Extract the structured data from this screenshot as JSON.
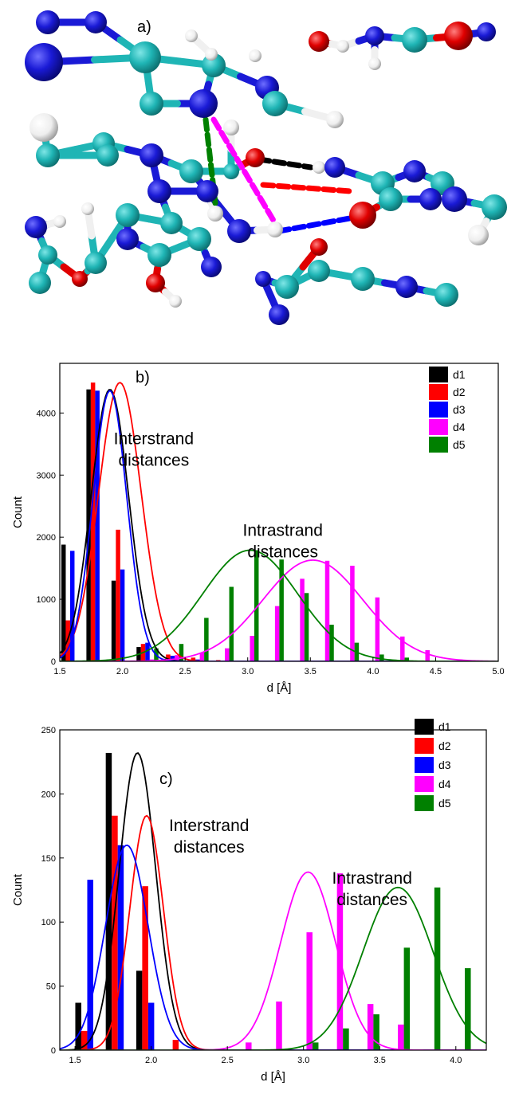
{
  "panels": [
    {
      "label": "a)"
    },
    {
      "label": "b)"
    },
    {
      "label": "c)"
    }
  ],
  "colors": {
    "d1": "#000000",
    "d2": "#ff0000",
    "d3": "#0000ff",
    "d4": "#ff00ff",
    "d5": "#008000",
    "carbon": "#1fb5b5",
    "nitrogen": "#1a1ad6",
    "oxygen": "#e00000",
    "hydrogen": "#f0f0f0"
  },
  "chart_data": [
    {
      "type": "bar",
      "panel": "b)",
      "title": "",
      "xlabel": "d [Å]",
      "ylabel": "Count",
      "xlim": [
        1.5,
        5.0
      ],
      "ylim": [
        0,
        4800
      ],
      "xticks": [
        "1.5",
        "2.0",
        "2.5",
        "3.0",
        "3.5",
        "4.0",
        "4.5",
        "5.0"
      ],
      "yticks": [
        "0",
        "1000",
        "2000",
        "3000",
        "4000"
      ],
      "legend": [
        "d1",
        "d2",
        "d3",
        "d4",
        "d5"
      ],
      "legend_position": "top-right",
      "annotations": [
        {
          "lines": [
            "Interstrand",
            "distances"
          ],
          "x": 2.25,
          "y": 3500
        },
        {
          "lines": [
            "Intrastrand",
            "distances"
          ],
          "x": 3.28,
          "y": 2020
        }
      ],
      "series": [
        {
          "name": "d1",
          "x": [
            1.6,
            1.8,
            2.0,
            2.2,
            2.4,
            2.6,
            2.8,
            3.0
          ],
          "values": [
            1880,
            4380,
            1300,
            230,
            40,
            10,
            5,
            10
          ],
          "fit": {
            "mu": 1.9,
            "sigma": 0.15,
            "amp": 4380
          }
        },
        {
          "name": "d2",
          "x": [
            1.6,
            1.8,
            2.0,
            2.2,
            2.4,
            2.6,
            2.8
          ],
          "values": [
            660,
            4490,
            2120,
            280,
            110,
            60,
            20
          ],
          "fit": {
            "mu": 1.98,
            "sigma": 0.17,
            "amp": 4490
          }
        },
        {
          "name": "d3",
          "x": [
            1.6,
            1.8,
            2.0,
            2.2,
            2.4,
            2.6
          ],
          "values": [
            1780,
            4360,
            1480,
            300,
            90,
            30
          ],
          "fit": {
            "mu": 1.9,
            "sigma": 0.135,
            "amp": 4360
          }
        },
        {
          "name": "d4",
          "x": [
            2.2,
            2.4,
            2.6,
            2.8,
            3.0,
            3.2,
            3.4,
            3.6,
            3.8,
            4.0,
            4.2,
            4.4
          ],
          "values": [
            30,
            100,
            140,
            210,
            410,
            890,
            1330,
            1620,
            1540,
            1030,
            400,
            180
          ],
          "fit": {
            "mu": 3.52,
            "sigma": 0.4,
            "amp": 1630
          }
        },
        {
          "name": "d5",
          "x": [
            2.2,
            2.4,
            2.6,
            2.8,
            3.0,
            3.2,
            3.4,
            3.6,
            3.8,
            4.0,
            4.2
          ],
          "values": [
            210,
            280,
            700,
            1200,
            1790,
            1640,
            1100,
            590,
            300,
            110,
            60
          ],
          "fit": {
            "mu": 3.02,
            "sigma": 0.38,
            "amp": 1790
          }
        }
      ]
    },
    {
      "type": "bar",
      "panel": "c)",
      "title": "",
      "xlabel": "d [Å]",
      "ylabel": "Count",
      "xlim": [
        1.4,
        4.2
      ],
      "ylim": [
        0,
        250
      ],
      "xticks": [
        "1.5",
        "2.0",
        "2.5",
        "3.0",
        "3.5",
        "4.0"
      ],
      "yticks": [
        "0",
        "50",
        "100",
        "150",
        "200",
        "250"
      ],
      "legend": [
        "d1",
        "d2",
        "d3",
        "d4",
        "d5"
      ],
      "legend_position": "top-right",
      "annotations": [
        {
          "lines": [
            "Interstrand",
            "distances"
          ],
          "x": 2.38,
          "y": 171
        },
        {
          "lines": [
            "Intrastrand",
            "distances"
          ],
          "x": 3.45,
          "y": 130
        }
      ],
      "series": [
        {
          "name": "d1",
          "x": [
            1.6,
            1.8,
            2.0
          ],
          "values": [
            37,
            232,
            62
          ],
          "fit": {
            "mu": 1.91,
            "sigma": 0.12,
            "amp": 232
          }
        },
        {
          "name": "d2",
          "x": [
            1.6,
            1.8,
            2.0,
            2.2
          ],
          "values": [
            15,
            183,
            128,
            8
          ],
          "fit": {
            "mu": 1.97,
            "sigma": 0.11,
            "amp": 183
          }
        },
        {
          "name": "d3",
          "x": [
            1.6,
            1.8,
            2.0
          ],
          "values": [
            133,
            160,
            37
          ],
          "fit": {
            "mu": 1.84,
            "sigma": 0.14,
            "amp": 160
          }
        },
        {
          "name": "d4",
          "x": [
            2.6,
            2.8,
            3.0,
            3.2,
            3.4,
            3.6
          ],
          "values": [
            6,
            38,
            92,
            138,
            36,
            20
          ],
          "fit": {
            "mu": 3.03,
            "sigma": 0.18,
            "amp": 139
          }
        },
        {
          "name": "d5",
          "x": [
            3.0,
            3.2,
            3.4,
            3.6,
            3.8,
            4.0,
            4.2
          ],
          "values": [
            6,
            17,
            28,
            80,
            127,
            64,
            9
          ],
          "fit": {
            "mu": 3.62,
            "sigma": 0.23,
            "amp": 127
          }
        }
      ]
    }
  ]
}
